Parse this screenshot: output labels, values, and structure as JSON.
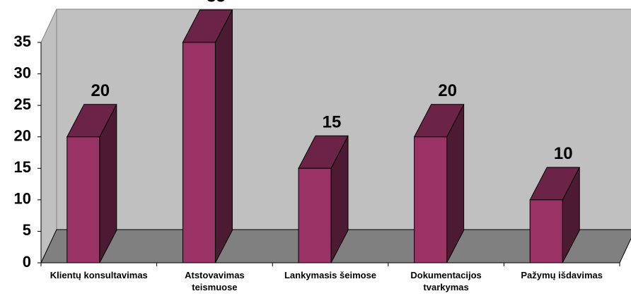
{
  "chart_data": {
    "type": "bar3d",
    "categories": [
      "Klientų konsultavimas",
      "Atstovavimas teismuose",
      "Lankymasis šeimose",
      "Dokumentacijos tvarkymas",
      "Pažymų išdavimas"
    ],
    "values": [
      20,
      35,
      15,
      20,
      10
    ],
    "color": "#993366",
    "ylim": [
      0,
      35
    ],
    "yticks": [
      0,
      5,
      10,
      15,
      20,
      25,
      30,
      35
    ]
  }
}
